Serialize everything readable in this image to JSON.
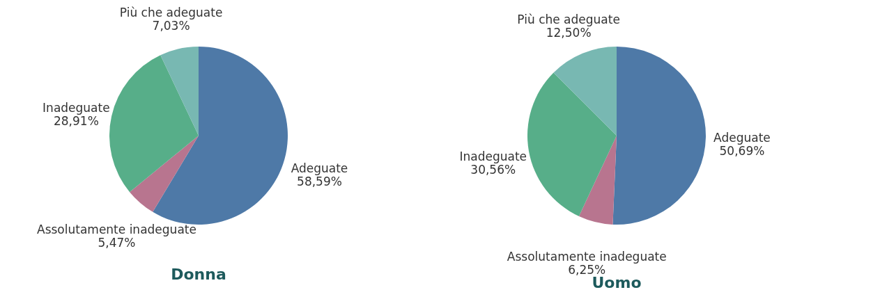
{
  "chart_data": [
    {
      "type": "pie",
      "title": "Donna",
      "categories": [
        "Adeguate",
        "Assolutamente inadeguate",
        "Inadeguate",
        "Più che adeguate"
      ],
      "values": [
        58.59,
        5.47,
        28.91,
        7.03
      ],
      "value_labels": [
        "58,59%",
        "5,47%",
        "28,91%",
        "7,03%"
      ],
      "colors": [
        "#4e79a7",
        "#b8758f",
        "#57ae89",
        "#78b8b2"
      ],
      "legend": false
    },
    {
      "type": "pie",
      "title": "Uomo",
      "categories": [
        "Adeguate",
        "Assolutamente inadeguate",
        "Inadeguate",
        "Più che adeguate"
      ],
      "values": [
        50.69,
        6.25,
        30.56,
        12.5
      ],
      "value_labels": [
        "50,69%",
        "6,25%",
        "30,56%",
        "12,50%"
      ],
      "colors": [
        "#4e79a7",
        "#b8758f",
        "#57ae89",
        "#78b8b2"
      ],
      "legend": false
    }
  ]
}
